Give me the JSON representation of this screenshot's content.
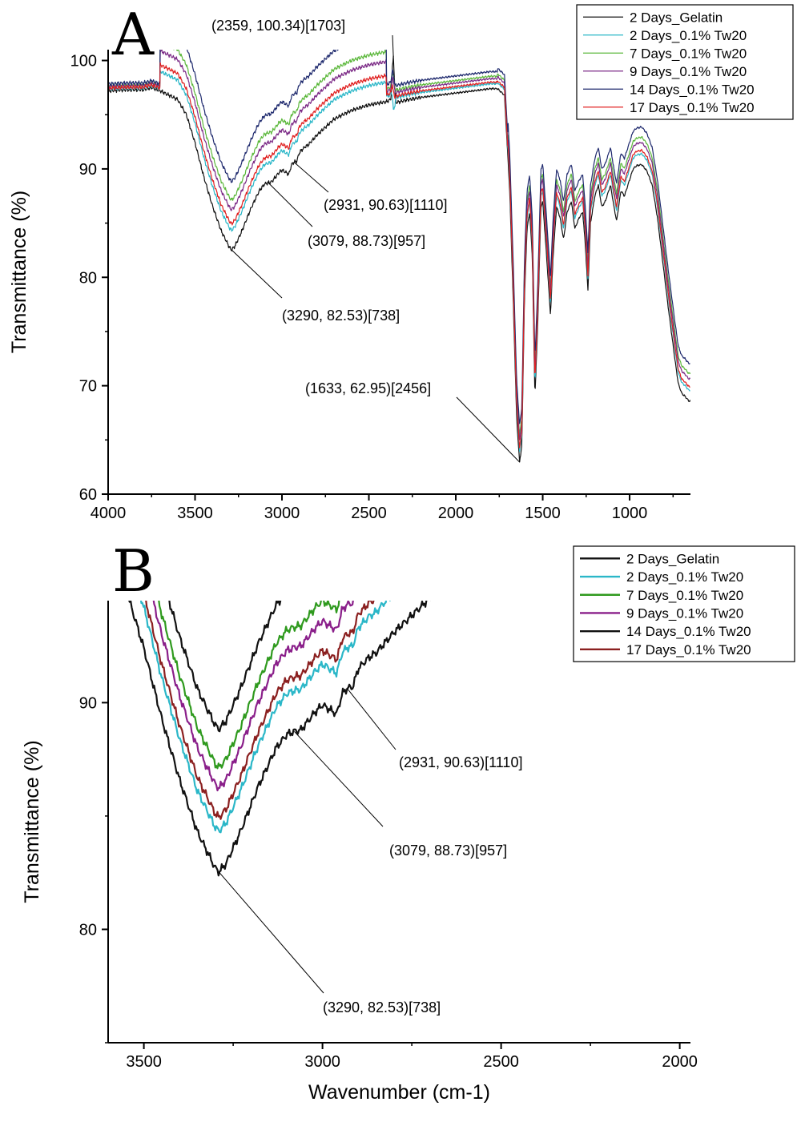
{
  "chart_data": [
    {
      "panel": "A",
      "type": "line",
      "ylabel": "Transmittance (%)",
      "xlabel": "",
      "xlim": [
        4000,
        650
      ],
      "ylim": [
        60,
        101
      ],
      "x_ticks": [
        4000,
        3500,
        3000,
        2500,
        2000,
        1500,
        1000
      ],
      "y_ticks": [
        60,
        70,
        80,
        90,
        100
      ],
      "grid": false,
      "legend_position": "top-right",
      "annotations": [
        {
          "text": "(2359, 100.34)[1703]",
          "x": 2359,
          "y": 100.34
        },
        {
          "text": "(2931, 90.63)[1110]",
          "x": 2931,
          "y": 90.63
        },
        {
          "text": "(3079, 88.73)[957]",
          "x": 3079,
          "y": 88.73
        },
        {
          "text": "(3290, 82.53)[738]",
          "x": 3290,
          "y": 82.53
        },
        {
          "text": "(1633, 62.95)[2456]",
          "x": 1633,
          "y": 62.95
        }
      ],
      "series": [
        {
          "name": "2 Days_Gelatin",
          "color": "#111111",
          "offset": 0.0
        },
        {
          "name": "2 Days_0.1% Tw20",
          "color": "#2bb7c8",
          "offset": 1.8
        },
        {
          "name": "7 Days_0.1% Tw20",
          "color": "#5cb83c",
          "offset": 4.6
        },
        {
          "name": "9 Days_0.1% Tw20",
          "color": "#7b2a86",
          "offset": 3.7
        },
        {
          "name": "14 Days_0.1% Tw20",
          "color": "#1f2a6e",
          "offset": 6.3
        },
        {
          "name": "17 Days_0.1% Tw20",
          "color": "#e02020",
          "offset": 2.4
        }
      ]
    },
    {
      "panel": "B",
      "type": "line",
      "ylabel": "Transmittance (%)",
      "xlabel": "Wavenumber (cm-1)",
      "xlim": [
        3600,
        1970
      ],
      "ylim": [
        75,
        94.5
      ],
      "x_ticks": [
        3500,
        3000,
        2500,
        2000
      ],
      "y_ticks": [
        80,
        90
      ],
      "grid": false,
      "legend_position": "top-right",
      "annotations": [
        {
          "text": "(2931, 90.63)[1110]",
          "x": 2931,
          "y": 90.63
        },
        {
          "text": "(3079, 88.73)[957]",
          "x": 3079,
          "y": 88.73
        },
        {
          "text": "(3290, 82.53)[738]",
          "x": 3290,
          "y": 82.53
        }
      ],
      "series": [
        {
          "name": "2 Days_Gelatin",
          "color": "#111111",
          "offset": 0.0
        },
        {
          "name": "2 Days_0.1% Tw20",
          "color": "#2bb7c8",
          "offset": 1.8
        },
        {
          "name": "7 Days_0.1% Tw20",
          "color": "#2f9a1e",
          "offset": 4.6
        },
        {
          "name": "9 Days_0.1% Tw20",
          "color": "#8a1f8a",
          "offset": 3.7
        },
        {
          "name": "14 Days_0.1% Tw20",
          "color": "#111111",
          "offset": 6.3
        },
        {
          "name": "17 Days_0.1% Tw20",
          "color": "#8b2020",
          "offset": 2.4
        }
      ]
    }
  ]
}
